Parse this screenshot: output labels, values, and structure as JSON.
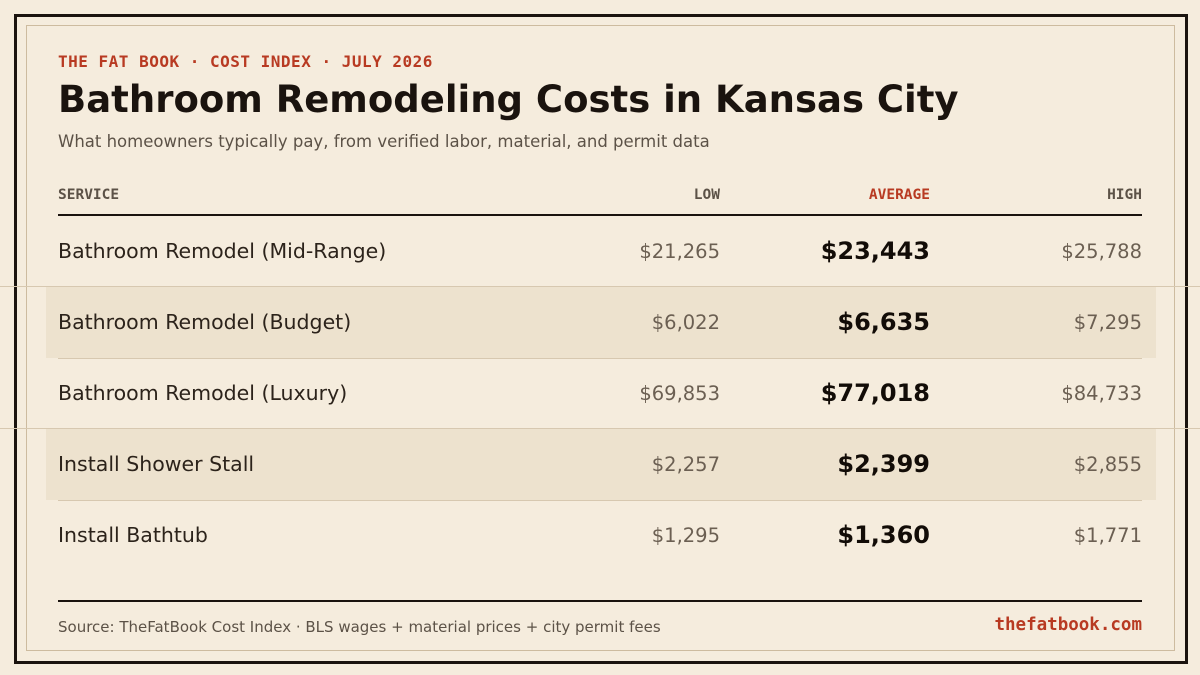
{
  "header": {
    "eyebrow": "THE FAT BOOK · COST INDEX · JULY 2026",
    "title": "Bathroom Remodeling Costs in Kansas City",
    "subtitle": "What homeowners typically pay, from verified labor, material, and permit data"
  },
  "colors": {
    "accent": "#b83a22",
    "background": "#f5ecdd",
    "alt_row": "#ede2ce",
    "ink": "#1a130e"
  },
  "chart_data": {
    "type": "table",
    "columns": [
      "SERVICE",
      "LOW",
      "AVERAGE",
      "HIGH"
    ],
    "rows": [
      {
        "service": "Bathroom Remodel (Mid-Range)",
        "low": "$21,265",
        "average": "$23,443",
        "high": "$25,788"
      },
      {
        "service": "Bathroom Remodel (Budget)",
        "low": "$6,022",
        "average": "$6,635",
        "high": "$7,295"
      },
      {
        "service": "Bathroom Remodel (Luxury)",
        "low": "$69,853",
        "average": "$77,018",
        "high": "$84,733"
      },
      {
        "service": "Install Shower Stall",
        "low": "$2,257",
        "average": "$2,399",
        "high": "$2,855"
      },
      {
        "service": "Install Bathtub",
        "low": "$1,295",
        "average": "$1,360",
        "high": "$1,771"
      }
    ]
  },
  "footer": {
    "source": "Source: TheFatBook Cost Index · BLS wages + material prices + city permit fees",
    "brand": "thefatbook.com"
  }
}
